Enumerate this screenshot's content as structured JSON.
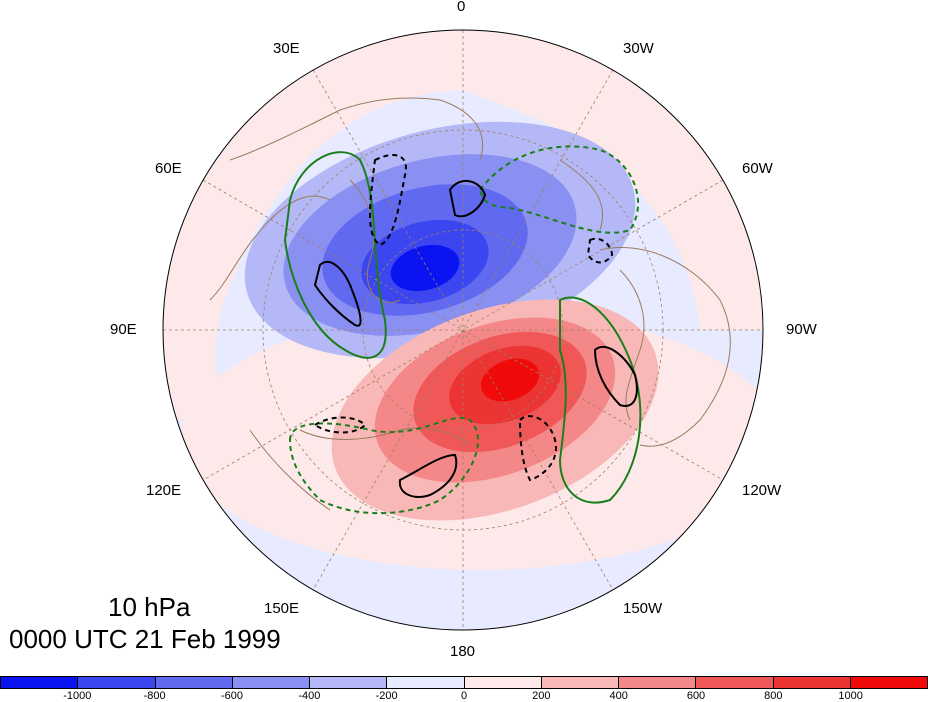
{
  "title": {
    "level": "10 hPa",
    "time": "0000 UTC 21 Feb 1999"
  },
  "longitude_labels": [
    {
      "text": "0",
      "lon": 0
    },
    {
      "text": "30W",
      "lon": -30
    },
    {
      "text": "60W",
      "lon": -60
    },
    {
      "text": "90W",
      "lon": -90
    },
    {
      "text": "120W",
      "lon": -120
    },
    {
      "text": "150W",
      "lon": -150
    },
    {
      "text": "180",
      "lon": 180
    },
    {
      "text": "150E",
      "lon": 150
    },
    {
      "text": "120E",
      "lon": 120
    },
    {
      "text": "90E",
      "lon": 90
    },
    {
      "text": "60E",
      "lon": 60
    },
    {
      "text": "30E",
      "lon": 30
    }
  ],
  "colorbar": {
    "ticks": [
      "-1000",
      "-800",
      "-600",
      "-400",
      "-200",
      "0",
      "200",
      "400",
      "600",
      "800",
      "1000"
    ],
    "colors": [
      "#0a14f0",
      "#3c46f0",
      "#6169f0",
      "#8a90f2",
      "#b4b8f6",
      "#e8eaff",
      "#fde9e9",
      "#f9b8b8",
      "#f48888",
      "#f05858",
      "#ec3434",
      "#f00a0a"
    ]
  },
  "colors": {
    "green_contour": "#1a7f1a",
    "black_contour": "#000000",
    "coast": "#9b7b60",
    "grid": "#a08060"
  }
}
